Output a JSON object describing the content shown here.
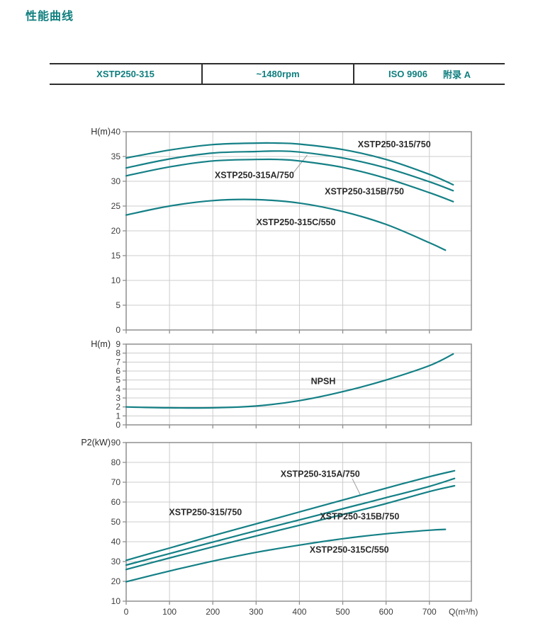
{
  "page": {
    "title": "性能曲线"
  },
  "header_table": {
    "model": "XSTP250-315",
    "speed": "~1480rpm",
    "standard": "ISO 9906",
    "annex": "附录 A"
  },
  "colors": {
    "accent_teal": "#0f7e7e",
    "curve": "#148086",
    "grid": "#cccccc",
    "frame": "#8f8f8f",
    "tick_text": "#3d3d3d",
    "label_text": "#2b2b2b",
    "leader": "#9b9b9b",
    "table_border": "#2e2e2e"
  },
  "chart_data": [
    {
      "type": "line",
      "id": "head-curve-chart",
      "ylabel": "H(m)",
      "ylim": [
        0,
        40
      ],
      "y_ticks": [
        0,
        5,
        10,
        15,
        20,
        25,
        30,
        35,
        40
      ],
      "xlim": [
        0,
        797
      ],
      "x_ticks": [
        0,
        100,
        200,
        300,
        400,
        500,
        600,
        700
      ],
      "x_tick_labels": false,
      "xlabel": "",
      "series": [
        {
          "name": "XSTP250-315/750",
          "x": [
            0,
            100,
            200,
            300,
            350,
            400,
            500,
            600,
            700,
            755
          ],
          "y": [
            34.7,
            36.3,
            37.4,
            37.7,
            37.7,
            37.5,
            36.4,
            34.4,
            31.4,
            29.3
          ]
        },
        {
          "name": "XSTP250-315A/750",
          "x": [
            0,
            100,
            200,
            300,
            350,
            400,
            500,
            600,
            700,
            755
          ],
          "y": [
            32.7,
            34.5,
            35.7,
            36.0,
            36.1,
            35.9,
            34.7,
            32.7,
            29.9,
            28.1
          ]
        },
        {
          "name": "XSTP250-315B/750",
          "x": [
            0,
            100,
            200,
            300,
            350,
            400,
            500,
            600,
            700,
            755
          ],
          "y": [
            31.1,
            32.9,
            34.1,
            34.4,
            34.4,
            34.1,
            32.8,
            30.6,
            27.7,
            25.9
          ]
        },
        {
          "name": "XSTP250-315C/550",
          "x": [
            0,
            100,
            200,
            300,
            400,
            500,
            600,
            700,
            737
          ],
          "y": [
            23.2,
            25.0,
            26.1,
            26.3,
            25.6,
            23.9,
            21.3,
            17.6,
            16.1
          ]
        }
      ],
      "annotations": [
        {
          "text": "XSTP250-315/750",
          "q": 619,
          "v": 37.4
        },
        {
          "text": "XSTP250-315A/750",
          "q": 296,
          "v": 31.2
        },
        {
          "text": "XSTP250-315B/750",
          "q": 550,
          "v": 27.9
        },
        {
          "text": "XSTP250-315C/550",
          "q": 392,
          "v": 21.7
        }
      ],
      "leaders": [
        {
          "q1": 385,
          "v1": 31.6,
          "q2": 418,
          "v2": 35.3
        }
      ]
    },
    {
      "type": "line",
      "id": "npsh-chart",
      "ylabel": "H(m)",
      "ylim": [
        0,
        9
      ],
      "y_ticks": [
        0,
        1,
        2,
        3,
        4,
        5,
        6,
        7,
        8,
        9
      ],
      "xlim": [
        0,
        797
      ],
      "x_ticks": [
        0,
        100,
        200,
        300,
        400,
        500,
        600,
        700
      ],
      "x_tick_labels": false,
      "xlabel": "",
      "series": [
        {
          "name": "NPSH",
          "x": [
            0,
            100,
            200,
            300,
            400,
            500,
            600,
            700,
            755
          ],
          "y": [
            2.0,
            1.9,
            1.9,
            2.1,
            2.7,
            3.7,
            5.0,
            6.6,
            7.9
          ]
        }
      ],
      "annotations": [
        {
          "text": "NPSH",
          "q": 455,
          "v": 4.85
        }
      ],
      "leaders": []
    },
    {
      "type": "line",
      "id": "power-curve-chart",
      "ylabel": "P2(kW)",
      "ylim": [
        10,
        90
      ],
      "y_ticks": [
        10,
        20,
        30,
        40,
        50,
        60,
        70,
        80,
        90
      ],
      "xlim": [
        0,
        797
      ],
      "x_ticks": [
        0,
        100,
        200,
        300,
        400,
        500,
        600,
        700
      ],
      "x_tick_labels": true,
      "xlabel": "Q(m³/h)",
      "series": [
        {
          "name": "XSTP250-315/750",
          "x": [
            0,
            100,
            200,
            300,
            400,
            500,
            600,
            700,
            758
          ],
          "y": [
            30.6,
            36.8,
            43.0,
            49.0,
            55.0,
            61.0,
            67.0,
            72.8,
            75.8
          ]
        },
        {
          "name": "XSTP250-315A/750",
          "x": [
            0,
            100,
            200,
            300,
            400,
            500,
            600,
            700,
            758
          ],
          "y": [
            28.2,
            34.0,
            39.8,
            45.5,
            51.0,
            56.6,
            62.2,
            67.9,
            71.9
          ]
        },
        {
          "name": "XSTP250-315B/750",
          "x": [
            0,
            100,
            200,
            300,
            400,
            500,
            600,
            700,
            758
          ],
          "y": [
            26.0,
            31.8,
            37.4,
            42.9,
            48.3,
            53.7,
            59.2,
            65.3,
            68.2
          ]
        },
        {
          "name": "XSTP250-315C/550",
          "x": [
            0,
            100,
            200,
            300,
            400,
            500,
            600,
            700,
            737
          ],
          "y": [
            19.8,
            25.2,
            30.2,
            34.6,
            38.3,
            41.5,
            44.0,
            45.8,
            46.2
          ]
        }
      ],
      "annotations": [
        {
          "text": "XSTP250-315A/750",
          "q": 448,
          "v": 74.1
        },
        {
          "text": "XSTP250-315/750",
          "q": 183,
          "v": 54.8
        },
        {
          "text": "XSTP250-315B/750",
          "q": 539,
          "v": 52.7
        },
        {
          "text": "XSTP250-315C/550",
          "q": 515,
          "v": 35.9
        }
      ],
      "leaders": [
        {
          "q1": 522,
          "v1": 71.8,
          "q2": 540,
          "v2": 63.9
        }
      ]
    }
  ]
}
